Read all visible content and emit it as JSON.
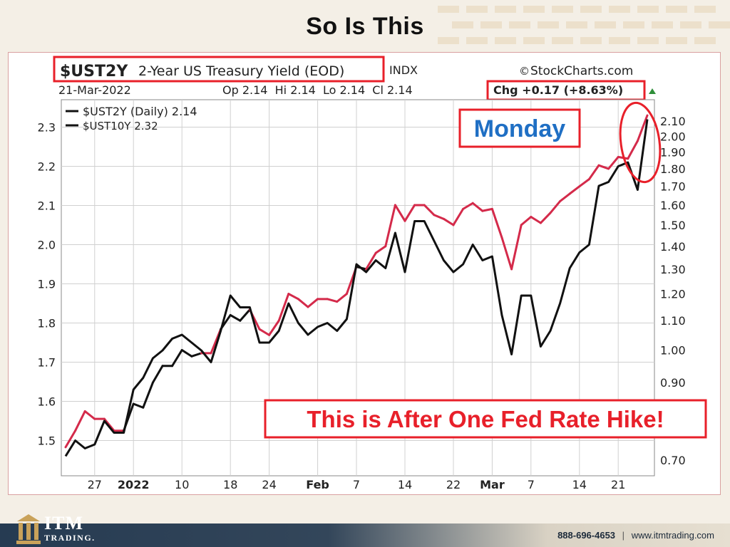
{
  "slide": {
    "title": "So Is This"
  },
  "chart_header": {
    "symbol": "$UST2Y",
    "name": "2-Year US Treasury Yield (EOD)",
    "exchange": "INDX",
    "source": "StockCharts.com",
    "date": "21-Mar-2022",
    "ohlc": "Op 2.14  Hi 2.14  Lo 2.14  Cl 2.14",
    "chg": "Chg +0.17 (+8.63%)"
  },
  "legend": {
    "line1": "$UST2Y (Daily) 2.14",
    "line2": "$UST10Y 2.32"
  },
  "annotations": {
    "monday": "Monday",
    "hike": "This is After One Fed Rate Hike!"
  },
  "footer": {
    "logo_main": "ITM",
    "logo_sub": "TRADING.",
    "phone": "888-696-4653",
    "separator": "|",
    "website": "www.itmtrading.com"
  },
  "colors": {
    "highlight_red": "#e8202a",
    "monday_blue": "#1f6fc4",
    "series_line": "#111111"
  },
  "chart_data": {
    "type": "line",
    "title": "$UST2Y 2-Year US Treasury Yield (EOD)",
    "x_tick_labels": [
      "27",
      "2022",
      "10",
      "18",
      "24",
      "Feb",
      "7",
      "14",
      "22",
      "Mar",
      "7",
      "14",
      "21"
    ],
    "x_tick_index": [
      3,
      7,
      12,
      17,
      21,
      26,
      30,
      35,
      40,
      44,
      48,
      53,
      57
    ],
    "left_axis": {
      "ticks": [
        2.3,
        2.2,
        2.1,
        2.0,
        1.9,
        1.8,
        1.7,
        1.6,
        1.5
      ],
      "series": "$UST10Y"
    },
    "right_axis": {
      "ticks": [
        2.1,
        2.0,
        1.9,
        1.8,
        1.7,
        1.6,
        1.5,
        1.4,
        1.3,
        1.2,
        1.1,
        1.0,
        0.9,
        0.7
      ],
      "scale": "log",
      "series": "$UST2Y"
    },
    "grid": true,
    "legend_position": "top-left",
    "series": [
      {
        "name": "$UST10Y",
        "axis": "left",
        "values": [
          1.46,
          1.5,
          1.48,
          1.49,
          1.55,
          1.52,
          1.52,
          1.63,
          1.66,
          1.71,
          1.73,
          1.76,
          1.77,
          1.75,
          1.73,
          1.7,
          1.78,
          1.87,
          1.84,
          1.84,
          1.75,
          1.75,
          1.78,
          1.85,
          1.8,
          1.77,
          1.79,
          1.8,
          1.78,
          1.81,
          1.95,
          1.93,
          1.96,
          1.94,
          2.03,
          1.93,
          2.06,
          2.06,
          2.01,
          1.96,
          1.93,
          1.95,
          2.0,
          1.96,
          1.97,
          1.82,
          1.72,
          1.87,
          1.87,
          1.74,
          1.78,
          1.85,
          1.94,
          1.98,
          2.0,
          2.15,
          2.16,
          2.2,
          2.21,
          2.14,
          2.32
        ]
      },
      {
        "name": "$UST2Y",
        "axis": "right",
        "values": [
          0.73,
          0.77,
          0.82,
          0.8,
          0.8,
          0.77,
          0.77,
          0.84,
          0.83,
          0.9,
          0.95,
          0.95,
          1.0,
          0.98,
          0.99,
          0.99,
          1.07,
          1.12,
          1.1,
          1.14,
          1.07,
          1.05,
          1.1,
          1.2,
          1.18,
          1.15,
          1.18,
          1.18,
          1.17,
          1.2,
          1.31,
          1.3,
          1.37,
          1.4,
          1.6,
          1.52,
          1.6,
          1.6,
          1.55,
          1.53,
          1.5,
          1.58,
          1.61,
          1.57,
          1.58,
          1.44,
          1.3,
          1.5,
          1.54,
          1.51,
          1.56,
          1.62,
          1.66,
          1.7,
          1.74,
          1.82,
          1.8,
          1.87,
          1.86,
          1.97,
          2.14
        ]
      }
    ]
  }
}
